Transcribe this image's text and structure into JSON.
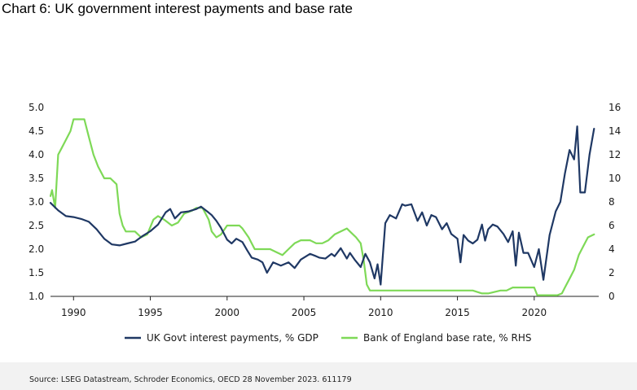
{
  "title": "Chart 6: UK government interest payments and base rate",
  "source": "Source: LSEG Datastream, Schroder Economics, OECD 28 November 2023. 611179",
  "chart_data": {
    "type": "line",
    "xlim": [
      1988.5,
      2024.2
    ],
    "x_ticks": [
      "1990",
      "1995",
      "2000",
      "2005",
      "2010",
      "2015",
      "2020"
    ],
    "ylim_left": [
      1.0,
      5.0
    ],
    "y_ticks_left": [
      "1.0",
      "1.5",
      "2.0",
      "2.5",
      "3.0",
      "3.5",
      "4.0",
      "4.5",
      "5.0"
    ],
    "ylim_right": [
      0,
      16
    ],
    "y_ticks_right": [
      "0",
      "2",
      "4",
      "6",
      "8",
      "10",
      "12",
      "14",
      "16"
    ],
    "series": [
      {
        "name": "UK Govt interest payments, % GDP",
        "axis": "left",
        "color": "#1f3864",
        "x": [
          1988.5,
          1989.0,
          1989.5,
          1990.0,
          1990.5,
          1991.0,
          1991.5,
          1992.0,
          1992.5,
          1993.0,
          1993.5,
          1994.0,
          1994.5,
          1995.0,
          1995.5,
          1996.0,
          1996.3,
          1996.6,
          1997.0,
          1997.5,
          1998.0,
          1998.3,
          1998.7,
          1999.0,
          1999.3,
          1999.6,
          2000.0,
          2000.3,
          2000.6,
          2001.0,
          2001.3,
          2001.6,
          2002.0,
          2002.3,
          2002.6,
          2003.0,
          2003.5,
          2004.0,
          2004.4,
          2004.8,
          2005.0,
          2005.4,
          2005.8,
          2006.0,
          2006.4,
          2006.8,
          2007.0,
          2007.4,
          2007.8,
          2008.0,
          2008.3,
          2008.7,
          2009.0,
          2009.3,
          2009.6,
          2009.8,
          2010.0,
          2010.3,
          2010.6,
          2011.0,
          2011.4,
          2011.6,
          2012.0,
          2012.4,
          2012.7,
          2013.0,
          2013.3,
          2013.6,
          2014.0,
          2014.3,
          2014.6,
          2015.0,
          2015.2,
          2015.4,
          2015.7,
          2016.0,
          2016.3,
          2016.6,
          2016.8,
          2017.0,
          2017.3,
          2017.6,
          2018.0,
          2018.3,
          2018.6,
          2018.8,
          2019.0,
          2019.3,
          2019.6,
          2020.0,
          2020.3,
          2020.6,
          2021.0,
          2021.4,
          2021.7,
          2022.0,
          2022.3,
          2022.6,
          2022.8,
          2023.0,
          2023.3,
          2023.6,
          2023.9
        ],
        "values": [
          2.98,
          2.82,
          2.7,
          2.68,
          2.64,
          2.58,
          2.42,
          2.22,
          2.1,
          2.08,
          2.12,
          2.16,
          2.28,
          2.38,
          2.52,
          2.78,
          2.85,
          2.65,
          2.78,
          2.8,
          2.85,
          2.9,
          2.8,
          2.72,
          2.6,
          2.45,
          2.2,
          2.12,
          2.22,
          2.15,
          1.98,
          1.82,
          1.78,
          1.72,
          1.5,
          1.72,
          1.65,
          1.72,
          1.6,
          1.78,
          1.82,
          1.9,
          1.85,
          1.82,
          1.8,
          1.9,
          1.85,
          2.02,
          1.8,
          1.92,
          1.78,
          1.62,
          1.9,
          1.72,
          1.38,
          1.68,
          1.25,
          2.55,
          2.72,
          2.65,
          2.95,
          2.92,
          2.95,
          2.6,
          2.78,
          2.5,
          2.72,
          2.68,
          2.42,
          2.55,
          2.32,
          2.22,
          1.72,
          2.3,
          2.18,
          2.12,
          2.2,
          2.52,
          2.18,
          2.42,
          2.52,
          2.48,
          2.32,
          2.15,
          2.38,
          1.65,
          2.35,
          1.92,
          1.92,
          1.62,
          2.0,
          1.35,
          2.3,
          2.8,
          3.0,
          3.6,
          4.1,
          3.9,
          4.6,
          3.2,
          3.2,
          4.0,
          4.55
        ]
      },
      {
        "name": "Bank of England base rate, % RHS",
        "axis": "right",
        "color": "#7ed957",
        "x": [
          1988.5,
          1988.6,
          1988.8,
          1989.0,
          1989.2,
          1989.4,
          1989.8,
          1990.0,
          1990.4,
          1990.7,
          1991.0,
          1991.3,
          1991.6,
          1991.8,
          1992.0,
          1992.4,
          1992.8,
          1993.0,
          1993.2,
          1993.4,
          1993.6,
          1994.0,
          1994.4,
          1994.8,
          1995.2,
          1995.5,
          1995.9,
          1996.4,
          1996.8,
          1997.2,
          1997.7,
          1998.0,
          1998.4,
          1998.8,
          1999.0,
          1999.3,
          1999.6,
          2000.0,
          2000.4,
          2000.8,
          2001.0,
          2001.4,
          2001.8,
          2002.0,
          2002.4,
          2002.8,
          2003.2,
          2003.6,
          2004.0,
          2004.4,
          2004.8,
          2005.0,
          2005.4,
          2005.8,
          2006.2,
          2006.6,
          2007.0,
          2007.4,
          2007.8,
          2008.0,
          2008.4,
          2008.7,
          2008.9,
          2009.1,
          2009.3,
          2010.0,
          2012.0,
          2014.0,
          2016.0,
          2016.6,
          2017.0,
          2017.8,
          2018.2,
          2018.6,
          2019.0,
          2020.0,
          2020.2,
          2020.4,
          2021.0,
          2021.5,
          2021.8,
          2022.0,
          2022.3,
          2022.6,
          2022.9,
          2023.2,
          2023.5,
          2023.9
        ],
        "values": [
          8.5,
          9.0,
          7.5,
          12.0,
          12.5,
          13.0,
          14.0,
          15.0,
          15.0,
          15.0,
          13.5,
          12.0,
          11.0,
          10.5,
          10.0,
          10.0,
          9.5,
          7.0,
          6.0,
          5.5,
          5.5,
          5.5,
          5.0,
          5.25,
          6.5,
          6.8,
          6.5,
          6.0,
          6.25,
          7.0,
          7.25,
          7.5,
          7.5,
          6.5,
          5.5,
          5.0,
          5.25,
          6.0,
          6.0,
          6.0,
          5.75,
          5.0,
          4.0,
          4.0,
          4.0,
          4.0,
          3.75,
          3.5,
          4.0,
          4.5,
          4.75,
          4.75,
          4.75,
          4.5,
          4.5,
          4.75,
          5.25,
          5.5,
          5.75,
          5.5,
          5.0,
          4.5,
          3.0,
          1.0,
          0.5,
          0.5,
          0.5,
          0.5,
          0.5,
          0.25,
          0.25,
          0.5,
          0.5,
          0.75,
          0.75,
          0.75,
          0.1,
          0.1,
          0.1,
          0.1,
          0.25,
          0.75,
          1.5,
          2.25,
          3.5,
          4.25,
          5.0,
          5.25
        ]
      }
    ],
    "legend": [
      "UK Govt interest payments, % GDP",
      "Bank of England base rate, % RHS"
    ],
    "legend_position": "bottom-center",
    "grid": false
  }
}
